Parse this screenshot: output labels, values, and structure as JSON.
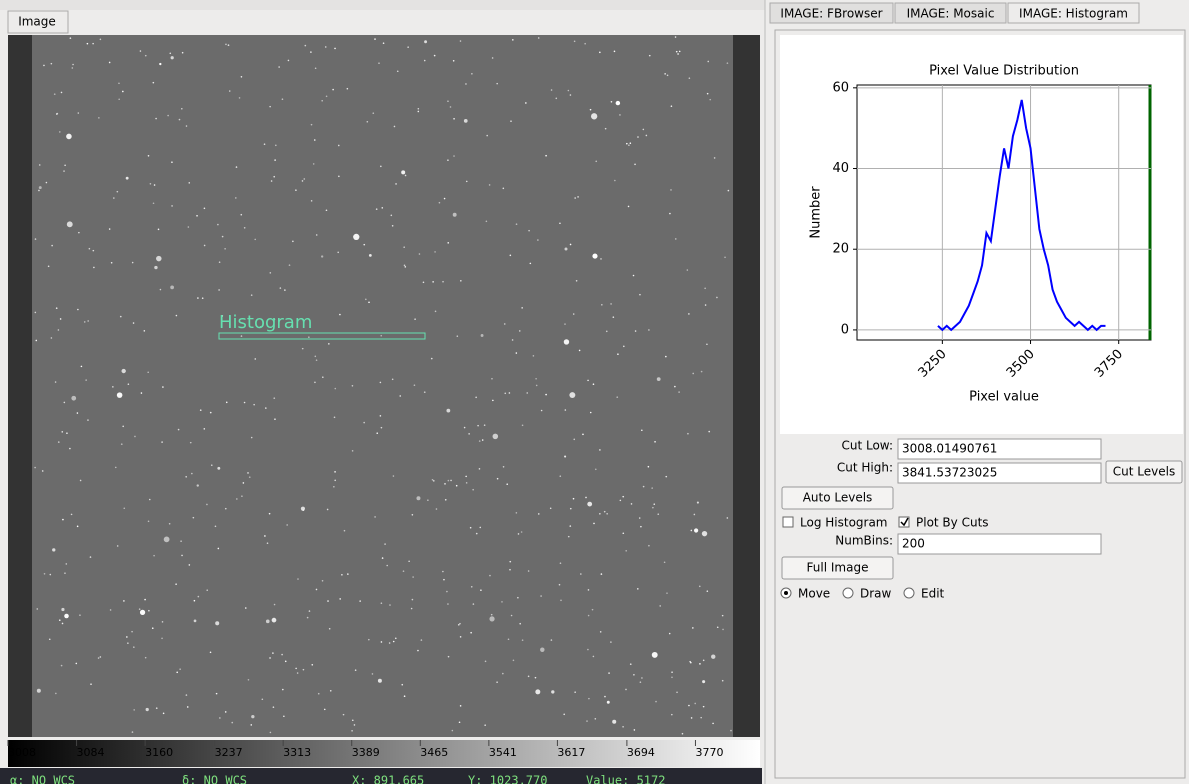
{
  "image_tab": "Image",
  "canvas_label": "Histogram",
  "colorbar": {
    "range": [
      3008.01,
      3841.54
    ],
    "ticks": [
      3008,
      3084,
      3160,
      3237,
      3313,
      3389,
      3465,
      3541,
      3617,
      3694,
      3770
    ]
  },
  "status": {
    "ra": "α: NO WCS",
    "dec": "δ: NO WCS",
    "x": "X: 891.665",
    "y": "Y: 1023.770",
    "value": "Value: 5172"
  },
  "tabs": [
    "IMAGE: FBrowser",
    "IMAGE: Mosaic",
    "IMAGE: Histogram"
  ],
  "chart_data": {
    "type": "line",
    "title": "Pixel Value Distribution",
    "x_label": "Pixel value",
    "y_label": "Number",
    "x": [
      3237.5,
      3250,
      3262.5,
      3275,
      3287.5,
      3300,
      3312.5,
      3325,
      3337.5,
      3350,
      3362.5,
      3375,
      3387.5,
      3400,
      3412.5,
      3425,
      3437.5,
      3450,
      3462.5,
      3475,
      3487.5,
      3500,
      3512.5,
      3525,
      3537.5,
      3550,
      3562.5,
      3575,
      3587.5,
      3600,
      3612.5,
      3625,
      3637.5,
      3650,
      3662.5,
      3675,
      3687.5,
      3700,
      3712.5
    ],
    "series": [
      {
        "name": "Number",
        "color": "#0000ff",
        "values": [
          1,
          0,
          1,
          0,
          1,
          2,
          4,
          6,
          9,
          12,
          16,
          24,
          22,
          30,
          38,
          45,
          40,
          48,
          52,
          57,
          50,
          45,
          35,
          25,
          20,
          16,
          10,
          7,
          5,
          3,
          2,
          1,
          2,
          1,
          0,
          1,
          0,
          1,
          1
        ]
      }
    ],
    "xlim": [
      3008.01,
      3841.54
    ],
    "ylim": [
      -2.5,
      60.7
    ],
    "xticks": [
      3250,
      3500,
      3750
    ],
    "yticks": [
      0,
      20,
      40,
      60
    ],
    "grid": true
  },
  "controls": {
    "cut_low_label": "Cut Low:",
    "cut_low": "3008.01490761",
    "cut_high_label": "Cut High:",
    "cut_high": "3841.53723025",
    "cut_levels": "Cut Levels",
    "auto_levels": "Auto Levels",
    "log_histogram": {
      "label": "Log Histogram",
      "checked": false
    },
    "plot_by_cuts": {
      "label": "Plot By Cuts",
      "checked": true
    },
    "numbins_label": "NumBins:",
    "numbins": "200",
    "full_image": "Full Image",
    "modes": [
      {
        "label": "Move",
        "selected": true
      },
      {
        "label": "Draw",
        "selected": false
      },
      {
        "label": "Edit",
        "selected": false
      }
    ]
  }
}
